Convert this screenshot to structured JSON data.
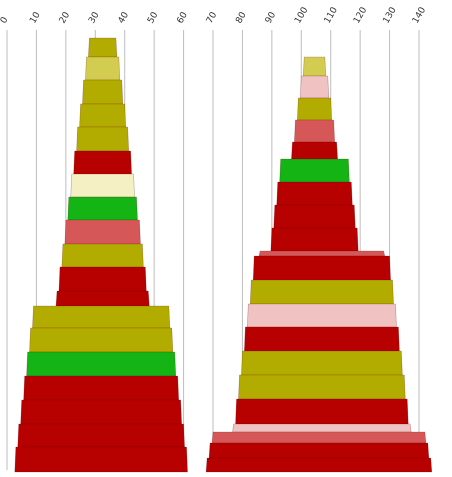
{
  "colors": {
    "olive": "#b3ac00",
    "yellow": "#d2cc50",
    "red": "#b70000",
    "pink": "#f0c2c2",
    "cream": "#f4f0c4",
    "green": "#13b413",
    "salmon": "#d65757"
  },
  "chart_data": {
    "type": "stacked-bar",
    "orientation": "vertical-tapered",
    "xlabel": "",
    "ylabel": "",
    "title": "",
    "grid": true,
    "ticks": [
      {
        "value": 0,
        "label": "0"
      },
      {
        "value": 10,
        "label": "10"
      },
      {
        "value": 20,
        "label": "20"
      },
      {
        "value": 30,
        "label": "30"
      },
      {
        "value": 40,
        "label": "40"
      },
      {
        "value": 50,
        "label": "50"
      },
      {
        "value": 60,
        "label": "60"
      },
      {
        "value": 70,
        "label": "70"
      },
      {
        "value": 80,
        "label": "80"
      },
      {
        "value": 90,
        "label": "90"
      },
      {
        "value": 100,
        "label": "100"
      },
      {
        "value": 110,
        "label": "110"
      },
      {
        "value": 120,
        "label": "120"
      },
      {
        "value": 130,
        "label": "130"
      },
      {
        "value": 140,
        "label": "140"
      }
    ],
    "axis_range": [
      0,
      140
    ],
    "stacks": [
      {
        "segments": [
          {
            "left": 28,
            "right": 37,
            "color": "olive"
          },
          {
            "left": 27,
            "right": 38,
            "color": "yellow"
          },
          {
            "left": 26,
            "right": 39,
            "color": "olive"
          },
          {
            "left": 25,
            "right": 40,
            "color": "olive"
          },
          {
            "left": 24,
            "right": 41,
            "color": "olive"
          },
          {
            "left": 23,
            "right": 42,
            "color": "red"
          },
          {
            "left": 22,
            "right": 43,
            "color": "cream"
          },
          {
            "left": 21,
            "right": 44,
            "color": "green"
          },
          {
            "left": 20,
            "right": 45,
            "color": "salmon"
          },
          {
            "left": 19,
            "right": 46,
            "color": "olive"
          },
          {
            "left": 18,
            "right": 47,
            "color": "red"
          },
          {
            "left": 17,
            "right": 48,
            "color": "red"
          },
          {
            "left": 9,
            "right": 55,
            "color": "olive"
          },
          {
            "left": 8,
            "right": 56,
            "color": "olive"
          },
          {
            "left": 7,
            "right": 57,
            "color": "green"
          },
          {
            "left": 6,
            "right": 58,
            "color": "red"
          },
          {
            "left": 5,
            "right": 59,
            "color": "red"
          },
          {
            "left": 4,
            "right": 60,
            "color": "red"
          },
          {
            "left": 3,
            "right": 61,
            "color": "red"
          }
        ]
      },
      {
        "segments": [
          {
            "left": 101,
            "right": 108,
            "color": "yellow"
          },
          {
            "left": 100,
            "right": 109,
            "color": "pink"
          },
          {
            "left": 99,
            "right": 110,
            "color": "olive"
          },
          {
            "left": 98,
            "right": 111,
            "color": "salmon"
          },
          {
            "left": 97,
            "right": 112,
            "color": "red"
          },
          {
            "left": 93,
            "right": 116,
            "color": "green"
          },
          {
            "left": 92,
            "right": 117,
            "color": "red"
          },
          {
            "left": 91,
            "right": 118,
            "color": "red"
          },
          {
            "left": 90,
            "right": 119,
            "color": "red"
          },
          {
            "left": 86,
            "right": 128,
            "color": "salmon"
          },
          {
            "left": 84,
            "right": 130,
            "color": "red"
          },
          {
            "left": 83,
            "right": 131,
            "color": "olive"
          },
          {
            "left": 82,
            "right": 132,
            "color": "pink"
          },
          {
            "left": 81,
            "right": 133,
            "color": "red"
          },
          {
            "left": 80,
            "right": 134,
            "color": "olive"
          },
          {
            "left": 79,
            "right": 135,
            "color": "olive"
          },
          {
            "left": 78,
            "right": 136,
            "color": "red"
          },
          {
            "left": 77,
            "right": 137,
            "color": "pink"
          },
          {
            "left": 70,
            "right": 142,
            "color": "salmon"
          },
          {
            "left": 69,
            "right": 143,
            "color": "red"
          },
          {
            "left": 68,
            "right": 144,
            "color": "red"
          }
        ]
      }
    ]
  }
}
